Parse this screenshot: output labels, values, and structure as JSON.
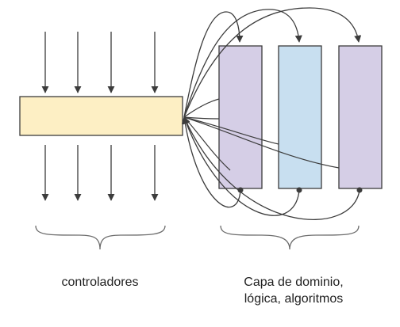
{
  "labels": {
    "controllers": "controladores",
    "domain_line1": "Capa de dominio,",
    "domain_line2": "lógica, algoritmos"
  },
  "colors": {
    "controller_box": "#fdefc4",
    "domain_box_purple": "#d5cee6",
    "domain_box_blue": "#c8dff0",
    "stroke": "#3c3c3c",
    "text": "#1f1f1f"
  },
  "shapes": {
    "controller_box": "rectangle",
    "domain_boxes": [
      "rectangle-purple",
      "rectangle-blue",
      "rectangle-purple"
    ]
  },
  "icons": {
    "arrowhead": "filled-triangle",
    "connector_start": "filled-dot",
    "grouping": "curly-brace"
  }
}
